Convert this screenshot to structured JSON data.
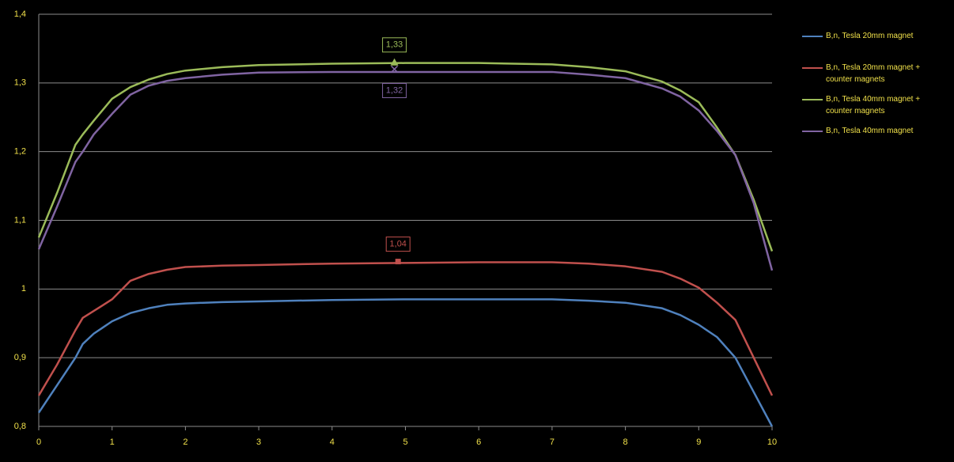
{
  "chart_data": {
    "type": "line",
    "x": [
      0,
      0.25,
      0.5,
      0.6,
      0.75,
      1,
      1.25,
      1.5,
      1.75,
      2,
      2.5,
      3,
      4,
      5,
      6,
      7,
      7.5,
      8,
      8.5,
      8.75,
      9,
      9.25,
      9.5,
      9.75,
      10
    ],
    "series": [
      {
        "name": "B,n, Tesla 20mm magnet",
        "color": "#4f81bd",
        "values": [
          0.82,
          0.86,
          0.9,
          0.92,
          0.935,
          0.953,
          0.965,
          0.972,
          0.977,
          0.979,
          0.981,
          0.982,
          0.984,
          0.985,
          0.985,
          0.985,
          0.983,
          0.98,
          0.972,
          0.962,
          0.948,
          0.93,
          0.9,
          0.85,
          0.8
        ]
      },
      {
        "name": "B,n, Tesla 20mm magnet + counter magnets",
        "color": "#c0504d",
        "values": [
          0.845,
          0.89,
          0.94,
          0.958,
          0.968,
          0.985,
          1.012,
          1.022,
          1.028,
          1.032,
          1.034,
          1.035,
          1.037,
          1.038,
          1.039,
          1.039,
          1.037,
          1.033,
          1.025,
          1.015,
          1.002,
          0.98,
          0.955,
          0.9,
          0.845
        ]
      },
      {
        "name": "B,n, Tesla 40mm magnet + counter magnets",
        "color": "#9bbb59",
        "values": [
          1.075,
          1.14,
          1.21,
          1.225,
          1.245,
          1.277,
          1.294,
          1.305,
          1.313,
          1.318,
          1.323,
          1.326,
          1.328,
          1.329,
          1.329,
          1.327,
          1.323,
          1.317,
          1.302,
          1.289,
          1.272,
          1.235,
          1.195,
          1.13,
          1.055
        ]
      },
      {
        "name": "B,n, Tesla 40mm magnet",
        "color": "#8064a2",
        "values": [
          1.058,
          1.12,
          1.185,
          1.2,
          1.225,
          1.255,
          1.283,
          1.296,
          1.303,
          1.307,
          1.312,
          1.315,
          1.316,
          1.316,
          1.316,
          1.316,
          1.312,
          1.307,
          1.292,
          1.28,
          1.26,
          1.23,
          1.195,
          1.125,
          1.027
        ]
      }
    ],
    "annotations": [
      {
        "x": 4.85,
        "y": 1.33,
        "label": "1,33",
        "color": "#9bbb59",
        "marker": "triangle",
        "position": "above"
      },
      {
        "x": 4.85,
        "y": 1.32,
        "label": "1,32",
        "color": "#8064a2",
        "marker": "x",
        "position": "below"
      },
      {
        "x": 4.9,
        "y": 1.04,
        "label": "1,04",
        "color": "#c0504d",
        "marker": "square",
        "position": "above"
      }
    ],
    "xlim": [
      0,
      10
    ],
    "xticks": [
      0,
      1,
      2,
      3,
      4,
      5,
      6,
      7,
      8,
      9,
      10
    ],
    "ylim": [
      0.8,
      1.4
    ],
    "yticks": [
      {
        "value": 0.8,
        "label": "0,8"
      },
      {
        "value": 0.9,
        "label": "0,9"
      },
      1,
      {
        "value": 1.1,
        "label": "1,1"
      },
      {
        "value": 1.2,
        "label": "1,2"
      },
      {
        "value": 1.3,
        "label": "1,3"
      },
      {
        "value": 1.4,
        "label": "1,4"
      }
    ],
    "grid": true,
    "legend": "right"
  }
}
